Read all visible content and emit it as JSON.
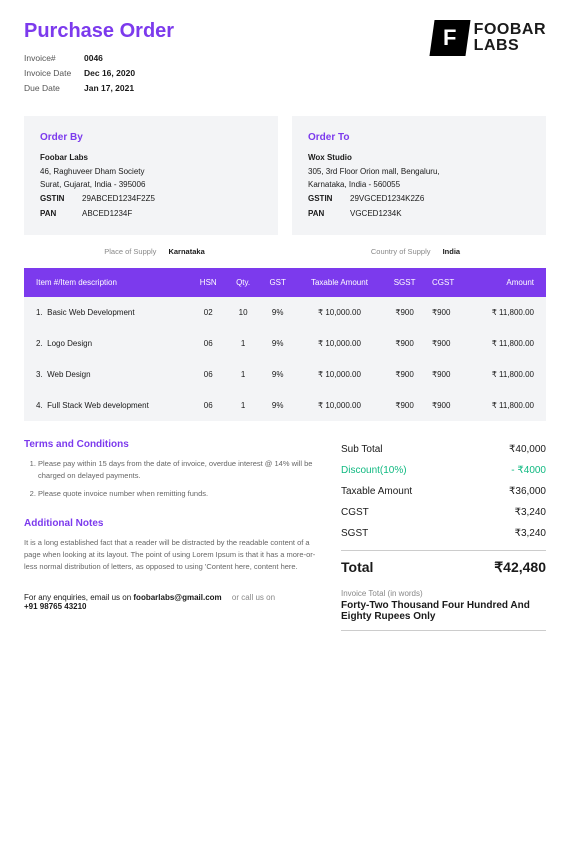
{
  "doc_title": "Purchase Order",
  "meta": {
    "invoice_no_label": "Invoice#",
    "invoice_no": "0046",
    "invoice_date_label": "Invoice Date",
    "invoice_date": "Dec 16, 2020",
    "due_date_label": "Due Date",
    "due_date": "Jan 17, 2021"
  },
  "logo": {
    "line1": "FOOBAR",
    "line2": "LABS"
  },
  "order_by": {
    "heading": "Order By",
    "name": "Foobar Labs",
    "addr1": "46, Raghuveer Dham Society",
    "addr2": "Surat, Gujarat, India - 395006",
    "gstin_label": "GSTIN",
    "gstin": "29ABCED1234F2Z5",
    "pan_label": "PAN",
    "pan": "ABCED1234F"
  },
  "order_to": {
    "heading": "Order To",
    "name": "Wox Studio",
    "addr1": "305, 3rd Floor Orion mall, Bengaluru,",
    "addr2": "Karnataka, India - 560055",
    "gstin_label": "GSTIN",
    "gstin": "29VGCED1234K2Z6",
    "pan_label": "PAN",
    "pan": "VGCED1234K"
  },
  "supply": {
    "place_label": "Place of Supply",
    "place": "Karnataka",
    "country_label": "Country of Supply",
    "country": "India"
  },
  "columns": {
    "desc": "Item #/Item description",
    "hsn": "HSN",
    "qty": "Qty.",
    "gst": "GST",
    "taxable": "Taxable Amount",
    "sgst": "SGST",
    "cgst": "CGST",
    "amount": "Amount"
  },
  "items": [
    {
      "idx": "1.",
      "desc": "Basic Web Development",
      "hsn": "02",
      "qty": "10",
      "gst": "9%",
      "taxable": "₹ 10,000.00",
      "sgst": "₹900",
      "cgst": "₹900",
      "amount": "₹ 11,800.00"
    },
    {
      "idx": "2.",
      "desc": "Logo Design",
      "hsn": "06",
      "qty": "1",
      "gst": "9%",
      "taxable": "₹ 10,000.00",
      "sgst": "₹900",
      "cgst": "₹900",
      "amount": "₹ 11,800.00"
    },
    {
      "idx": "3.",
      "desc": "Web Design",
      "hsn": "06",
      "qty": "1",
      "gst": "9%",
      "taxable": "₹ 10,000.00",
      "sgst": "₹900",
      "cgst": "₹900",
      "amount": "₹ 11,800.00"
    },
    {
      "idx": "4.",
      "desc": "Full Stack Web development",
      "hsn": "06",
      "qty": "1",
      "gst": "9%",
      "taxable": "₹ 10,000.00",
      "sgst": "₹900",
      "cgst": "₹900",
      "amount": "₹ 11,800.00"
    }
  ],
  "terms": {
    "heading": "Terms and Conditions",
    "t1": "Please pay within 15 days from the date of invoice, overdue interest @ 14% will be charged on delayed payments.",
    "t2": "Please quote invoice number when remitting funds."
  },
  "notes": {
    "heading": "Additional Notes",
    "body": "It is a long established fact that a reader will be distracted by the readable content of a page when looking at its layout. The point of using Lorem Ipsum is that it has a more-or-less normal distribution of letters, as opposed to using 'Content here, content here."
  },
  "contact": {
    "pre": "For any enquiries, email us on ",
    "email": "foobarlabs@gmail.com",
    "mid": " or call us on",
    "phone": "+91 98765 43210"
  },
  "totals": {
    "subtotal_label": "Sub Total",
    "subtotal": "₹40,000",
    "discount_label": "Discount(10%)",
    "discount": "- ₹4000",
    "taxable_label": "Taxable Amount",
    "taxable": "₹36,000",
    "cgst_label": "CGST",
    "cgst": "₹3,240",
    "sgst_label": "SGST",
    "sgst": "₹3,240",
    "total_label": "Total",
    "total": "₹42,480",
    "words_label": "Invoice Total (in words)",
    "words": "Forty-Two Thousand Four Hundred And Eighty Rupees Only"
  },
  "colors": {
    "accent": "#7c3aed",
    "panel_bg": "#f3f4f6",
    "discount": "#10b981"
  }
}
